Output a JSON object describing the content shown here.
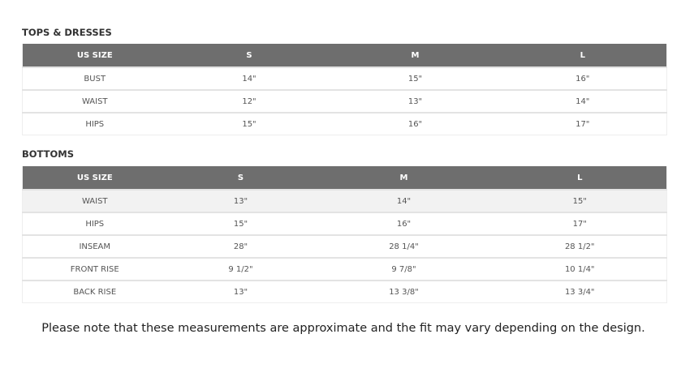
{
  "tops": {
    "title": "TOPS & DRESSES",
    "headers": [
      "US SIZE",
      "S",
      "M",
      "L"
    ],
    "rows": [
      [
        "BUST",
        "14\"",
        "15\"",
        "16\""
      ],
      [
        "WAIST",
        "12\"",
        "13\"",
        "14\""
      ],
      [
        "HIPS",
        "15\"",
        "16\"",
        "17\""
      ]
    ]
  },
  "bottoms": {
    "title": "BOTTOMS",
    "headers": [
      "US SIZE",
      "S",
      "M",
      "L"
    ],
    "rows": [
      [
        "WAIST",
        "13\"",
        "14\"",
        "15\""
      ],
      [
        "HIPS",
        "15\"",
        "16\"",
        "17\""
      ],
      [
        "INSEAM",
        "28\"",
        "28 1/4\"",
        "28 1/2\""
      ],
      [
        "FRONT RISE",
        "9 1/2\"",
        "9 7/8\"",
        "10 1/4\""
      ],
      [
        "BACK RISE",
        "13\"",
        "13 3/8\"",
        "13 3/4\""
      ]
    ]
  },
  "note": "Please note that these measurements are approximate and the fit may vary depending on the design."
}
